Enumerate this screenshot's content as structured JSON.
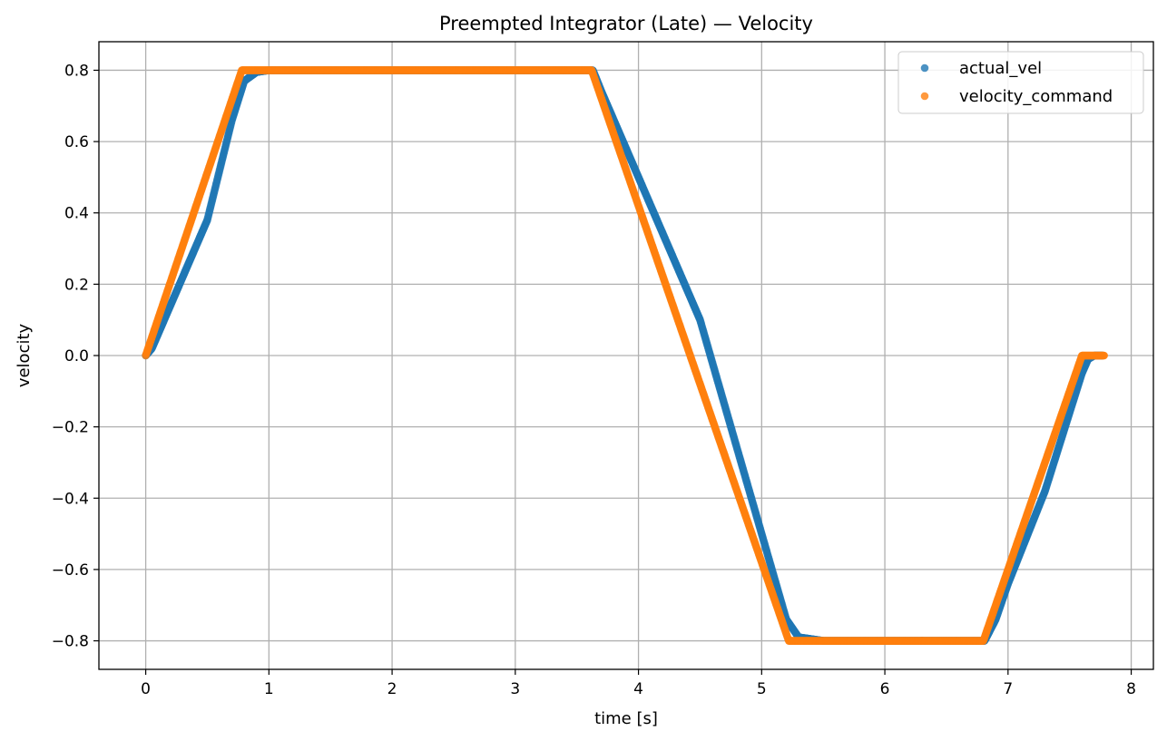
{
  "chart_data": {
    "type": "scatter",
    "title": "Preempted Integrator (Late) — Velocity",
    "xlabel": "time [s]",
    "ylabel": "velocity",
    "xlim": [
      -0.38,
      8.18
    ],
    "ylim": [
      -0.88,
      0.88
    ],
    "xticks": [
      0,
      1,
      2,
      3,
      4,
      5,
      6,
      7,
      8
    ],
    "xtick_labels": [
      "0",
      "1",
      "2",
      "3",
      "4",
      "5",
      "6",
      "7",
      "8"
    ],
    "yticks": [
      0.8,
      0.6,
      0.4,
      0.2,
      0.0,
      -0.2,
      -0.4,
      -0.6,
      -0.8
    ],
    "ytick_labels": [
      "0.8",
      "0.6",
      "0.4",
      "0.2",
      "0.0",
      "−0.2",
      "−0.4",
      "−0.6",
      "−0.8"
    ],
    "grid": true,
    "legend": "top-right",
    "series": [
      {
        "name": "actual_vel",
        "color": "#1f77b4",
        "x": [
          0.0,
          0.05,
          0.15,
          0.3,
          0.5,
          0.7,
          0.8,
          0.9,
          1.0,
          3.63,
          3.7,
          4.0,
          4.5,
          5.0,
          5.2,
          5.3,
          5.5,
          6.81,
          6.9,
          7.0,
          7.3,
          7.6,
          7.65,
          7.7,
          7.77
        ],
        "y": [
          0.0,
          0.02,
          0.1,
          0.22,
          0.38,
          0.66,
          0.77,
          0.795,
          0.8,
          0.8,
          0.74,
          0.5,
          0.1,
          -0.5,
          -0.74,
          -0.79,
          -0.8,
          -0.8,
          -0.74,
          -0.64,
          -0.38,
          -0.05,
          -0.01,
          0.0,
          0.0
        ]
      },
      {
        "name": "velocity_command",
        "color": "#ff7f0e",
        "x": [
          0.0,
          0.78,
          3.62,
          5.22,
          6.8,
          7.6,
          7.78
        ],
        "y": [
          0.0,
          0.8,
          0.8,
          -0.8,
          -0.8,
          0.0,
          0.0
        ]
      }
    ]
  }
}
